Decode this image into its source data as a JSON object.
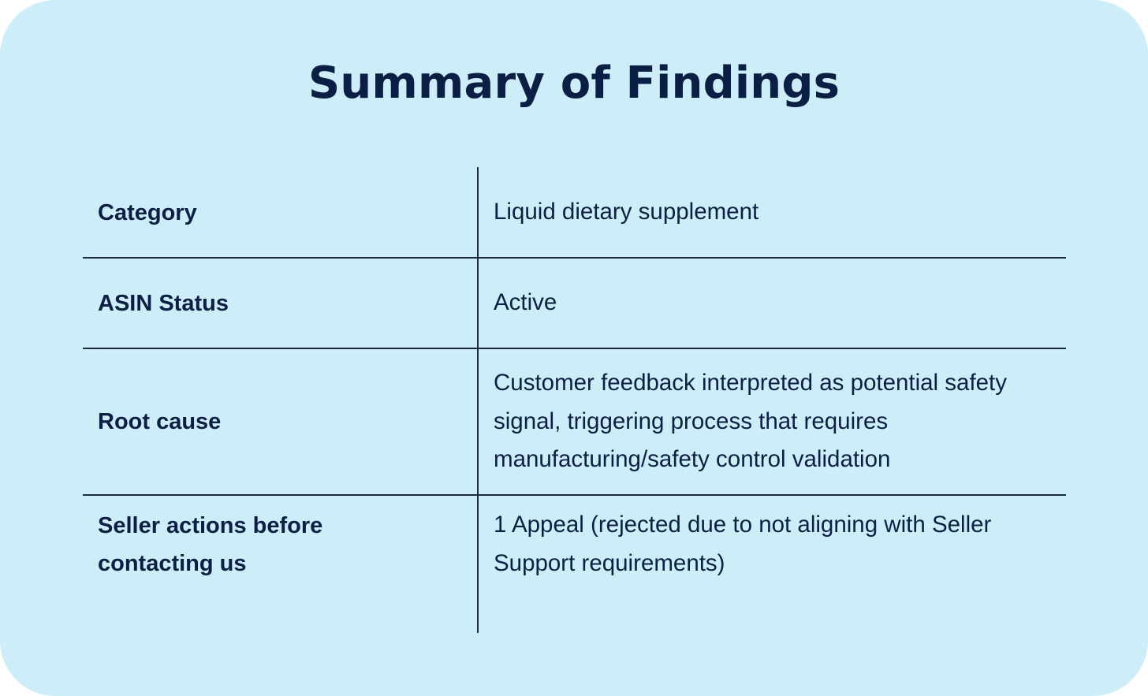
{
  "title": "Summary of Findings",
  "rows": [
    {
      "label": "Category",
      "value": "Liquid dietary supplement"
    },
    {
      "label": "ASIN Status",
      "value": "Active"
    },
    {
      "label": "Root cause",
      "value": "Customer feedback interpreted as potential safety signal, triggering process that requires manufacturing/safety control validation"
    },
    {
      "label": "Seller actions before contacting us",
      "value": "1 Appeal (rejected due to not aligning with Seller Support requirements)"
    }
  ]
}
